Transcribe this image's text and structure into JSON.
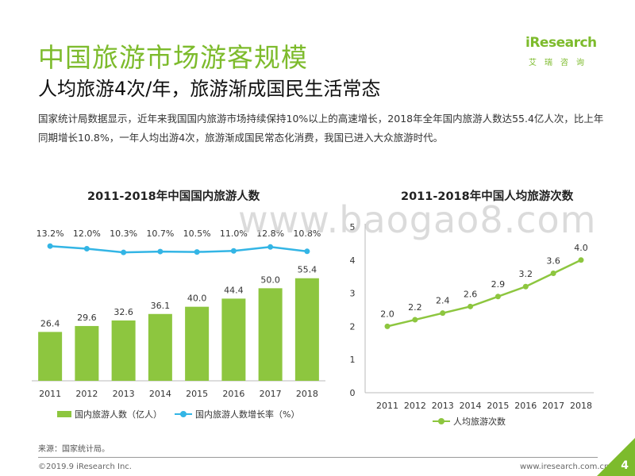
{
  "header": {
    "title": "中国旅游市场游客规模",
    "subtitle": "人均旅游4次/年，旅游渐成国民生活常态"
  },
  "logo": {
    "wordmark": "iResearch",
    "cn": "艾瑞咨询"
  },
  "body": "国家统计局数据显示，近年来我国国内旅游市场持续保持10%以上的高速增长，2018年全年国内旅游人数达55.4亿人次，比上年同期增长10.8%，一年人均出游4次，旅游渐成国民常态化消费，我国已进入大众旅游时代。",
  "watermark": "www.baogao8.com",
  "chart_data": [
    {
      "type": "bar",
      "title": "2011-2018年中国国内旅游人数",
      "categories": [
        "2011",
        "2012",
        "2013",
        "2014",
        "2015",
        "2016",
        "2017",
        "2018"
      ],
      "series": [
        {
          "name": "国内旅游人数（亿人）",
          "type": "bar",
          "color": "#8dc63f",
          "values": [
            26.4,
            29.6,
            32.6,
            36.1,
            40.0,
            44.4,
            50.0,
            55.4
          ],
          "labels": [
            "26.4",
            "29.6",
            "32.6",
            "36.1",
            "40.0",
            "44.4",
            "50.0",
            "55.4"
          ]
        },
        {
          "name": "国内旅游人数增长率（%）",
          "type": "line",
          "color": "#33b5e5",
          "values": [
            13.2,
            12.0,
            10.3,
            10.7,
            10.5,
            11.0,
            12.8,
            10.8
          ],
          "labels": [
            "13.2%",
            "12.0%",
            "10.3%",
            "10.7%",
            "10.5%",
            "11.0%",
            "12.8%",
            "10.8%"
          ]
        }
      ],
      "grid": false,
      "legend_position": "bottom"
    },
    {
      "type": "line",
      "title": "2011-2018年中国人均旅游次数",
      "categories": [
        "2011",
        "2012",
        "2013",
        "2014",
        "2015",
        "2016",
        "2017",
        "2018"
      ],
      "series": [
        {
          "name": "人均旅游次数",
          "color": "#8dc63f",
          "values": [
            2.0,
            2.2,
            2.4,
            2.6,
            2.9,
            3.2,
            3.6,
            4.0
          ],
          "labels": [
            "2.0",
            "2.2",
            "2.4",
            "2.6",
            "2.9",
            "3.2",
            "3.6",
            "4.0"
          ]
        }
      ],
      "ylim": [
        0,
        5
      ],
      "yticks": [
        "0",
        "1",
        "2",
        "3",
        "4",
        "5"
      ],
      "grid": false,
      "legend_position": "bottom"
    }
  ],
  "footer": {
    "source": "来源：国家统计局。",
    "copyright": "©2019.9 iResearch Inc.",
    "url": "www.iresearch.com.cn",
    "page": "4"
  }
}
